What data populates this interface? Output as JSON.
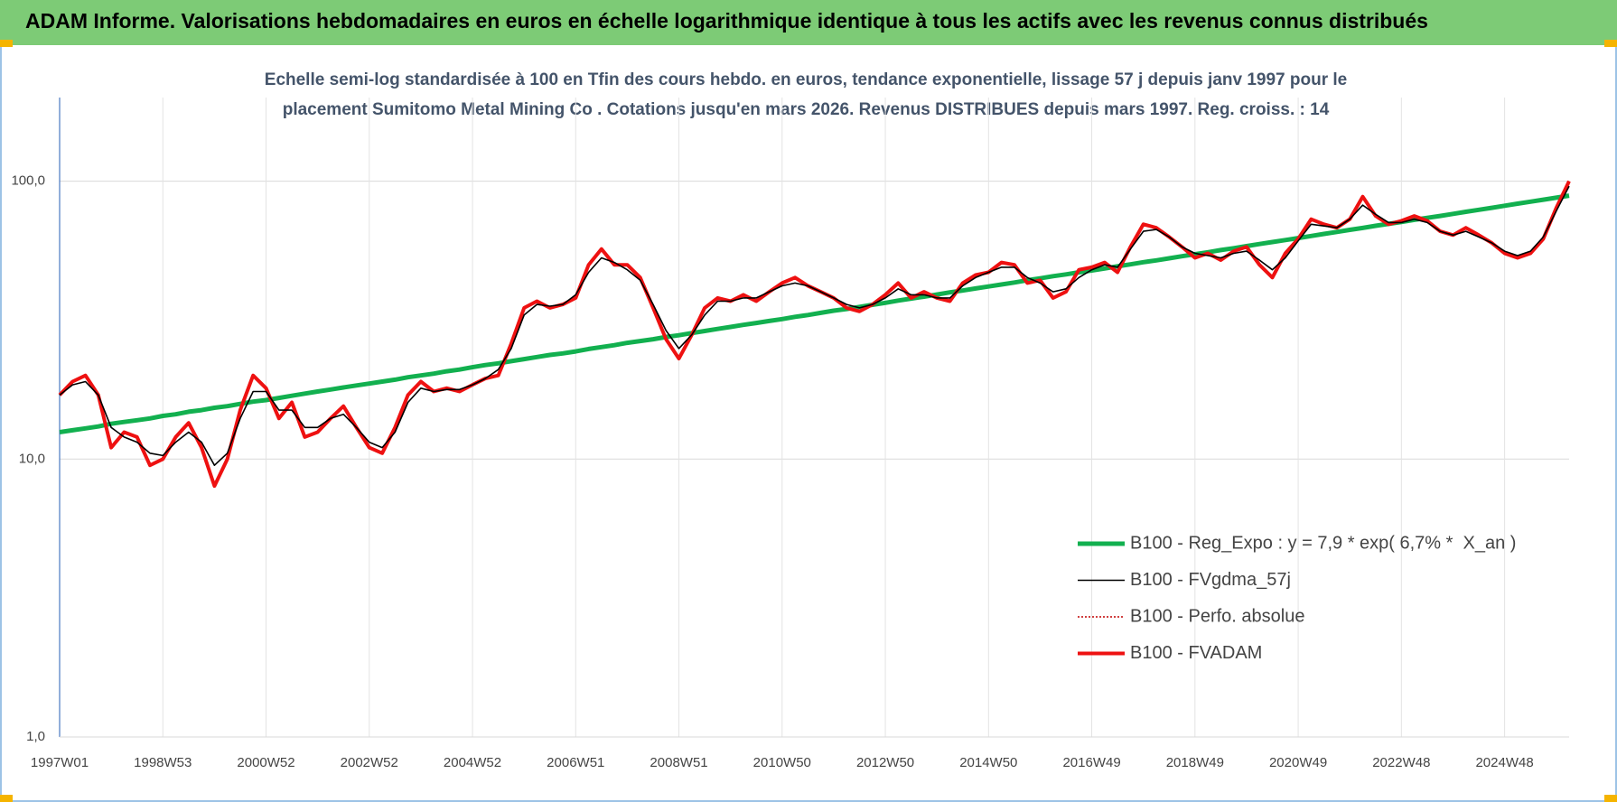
{
  "chart_data": {
    "type": "line",
    "title": "ADAM Informe. Valorisations hebdomadaires en euros en échelle logarithmique identique à tous les actifs avec les revenus connus distribués",
    "subtitle": [
      "Echelle semi-log standardisée à 100 en Tfin des cours hebdo. en euros, tendance exponentielle, lissage 57 j depuis janv 1997 pour le",
      "placement Sumitomo Metal Mining Co . Cotations jusqu'en mars 2026. Revenus DISTRIBUES depuis mars 1997. Reg. croiss. : 14"
    ],
    "categories": [
      "1997W01",
      null,
      null,
      null,
      null,
      null,
      null,
      null,
      "1998W53",
      null,
      null,
      null,
      null,
      null,
      null,
      null,
      "2000W52",
      null,
      null,
      null,
      null,
      null,
      null,
      null,
      "2002W52",
      null,
      null,
      null,
      null,
      null,
      null,
      null,
      "2004W52",
      null,
      null,
      null,
      null,
      null,
      null,
      null,
      "2006W51",
      null,
      null,
      null,
      null,
      null,
      null,
      null,
      "2008W51",
      null,
      null,
      null,
      null,
      null,
      null,
      null,
      "2010W50",
      null,
      null,
      null,
      null,
      null,
      null,
      null,
      "2012W50",
      null,
      null,
      null,
      null,
      null,
      null,
      null,
      "2014W50",
      null,
      null,
      null,
      null,
      null,
      null,
      null,
      "2016W49",
      null,
      null,
      null,
      null,
      null,
      null,
      null,
      "2018W49",
      null,
      null,
      null,
      null,
      null,
      null,
      null,
      "2020W49",
      null,
      null,
      null,
      null,
      null,
      null,
      null,
      "2022W48",
      null,
      null,
      null,
      null,
      null,
      null,
      null,
      "2024W48",
      null,
      null,
      null,
      null,
      null
    ],
    "log_scale": true,
    "grid": true,
    "legend": "lower right",
    "ylim": [
      1,
      200
    ],
    "yticks": [
      {
        "value": 1,
        "label": "1,0"
      },
      {
        "value": 10,
        "label": "10,0"
      },
      {
        "value": 100,
        "label": "100,0"
      }
    ],
    "series": [
      {
        "name": "B100 - Reg_Expo : y = 7,9 * exp( 6,7% *  X_an )",
        "color": "#12b04f",
        "line_style": "solid",
        "line_width": 5,
        "values": [
          12.5,
          12.7,
          12.9,
          13.1,
          13.4,
          13.6,
          13.8,
          14.0,
          14.3,
          14.5,
          14.8,
          15.0,
          15.3,
          15.5,
          15.8,
          16.1,
          16.3,
          16.6,
          16.9,
          17.2,
          17.5,
          17.8,
          18.1,
          18.4,
          18.7,
          19.0,
          19.3,
          19.7,
          20.0,
          20.3,
          20.7,
          21.0,
          21.4,
          21.8,
          22.1,
          22.5,
          22.9,
          23.3,
          23.7,
          24.0,
          24.4,
          24.9,
          25.3,
          25.7,
          26.2,
          26.6,
          27.0,
          27.5,
          27.9,
          28.4,
          28.9,
          29.4,
          29.9,
          30.4,
          30.9,
          31.4,
          31.9,
          32.5,
          33.0,
          33.6,
          34.2,
          34.7,
          35.3,
          35.9,
          36.5,
          37.2,
          37.8,
          38.4,
          39.1,
          39.8,
          40.4,
          41.1,
          41.8,
          42.5,
          43.2,
          44.0,
          44.7,
          45.5,
          46.2,
          47.0,
          47.7,
          48.5,
          49.4,
          50.2,
          51.1,
          51.9,
          52.8,
          53.7,
          54.6,
          55.5,
          56.5,
          57.4,
          58.4,
          59.4,
          60.4,
          61.4,
          62.4,
          63.5,
          64.6,
          65.7,
          66.8,
          67.9,
          69.1,
          70.2,
          71.3,
          72.6,
          73.8,
          75.0,
          76.3,
          77.6,
          78.9,
          80.2,
          81.6,
          83.0,
          84.4,
          85.8,
          87.2,
          88.7
        ]
      },
      {
        "name": "B100 - FVgdma_57j",
        "color": "#000000",
        "line_style": "solid",
        "line_width": 1.6,
        "values": [
          17,
          18.5,
          19,
          17,
          13,
          12,
          11.5,
          10.5,
          10.3,
          11.5,
          12.5,
          11.5,
          9.5,
          10.5,
          14,
          17.5,
          17.5,
          15,
          15,
          13,
          13,
          14,
          14.5,
          13,
          11.5,
          11,
          12.5,
          16,
          18,
          17.5,
          17.8,
          17.8,
          18.5,
          19.5,
          21,
          25,
          33,
          36,
          35.5,
          36,
          39,
          47,
          53,
          51,
          48,
          44,
          36,
          29,
          25,
          28,
          33,
          37,
          37,
          38,
          38,
          40,
          42,
          43,
          42,
          40,
          38,
          36,
          35,
          36,
          38,
          41,
          39,
          39,
          38,
          38,
          42,
          45,
          47,
          49,
          49,
          45,
          43,
          40,
          41,
          45,
          48,
          50,
          49,
          57,
          66,
          67,
          63,
          58,
          55,
          54,
          53,
          55,
          56,
          52,
          48,
          53,
          61,
          70,
          69,
          68,
          73,
          82,
          76,
          71,
          71,
          73,
          71,
          66,
          64,
          66,
          63,
          60,
          56,
          54,
          56,
          63,
          78,
          96
        ]
      },
      {
        "name": "B100 - Perfo. absolue",
        "color": "#c00000",
        "line_style": "dotted",
        "line_width": 1.5,
        "values": [
          17,
          19,
          20,
          17,
          11,
          12.5,
          12,
          9.5,
          10,
          12,
          13.5,
          11,
          8,
          10,
          15,
          20,
          18,
          14,
          16,
          12,
          12.5,
          14,
          15.5,
          13,
          11,
          10.5,
          13,
          17,
          19,
          17.5,
          18,
          17.5,
          18.5,
          19.5,
          20,
          26,
          35,
          37,
          35,
          36,
          38,
          50,
          57,
          50,
          50,
          45,
          35,
          27,
          23,
          28,
          35,
          38,
          37,
          39,
          37,
          40,
          43,
          45,
          42,
          40,
          38,
          35,
          34,
          36,
          39,
          43,
          38,
          40,
          38,
          37,
          43,
          46,
          47,
          51,
          50,
          43,
          44,
          38,
          40,
          48,
          49,
          51,
          47,
          58,
          70,
          68,
          63,
          58,
          53,
          55,
          52,
          56,
          58,
          50,
          45,
          55,
          62,
          73,
          70,
          68,
          73,
          88,
          75,
          70,
          72,
          75,
          72,
          66,
          64,
          68,
          64,
          60,
          55,
          53,
          55,
          62,
          80,
          100
        ]
      },
      {
        "name": "B100 - FVADAM",
        "color": "#ee1111",
        "line_style": "solid",
        "line_width": 4,
        "values": [
          17,
          19,
          20,
          17,
          11,
          12.5,
          12,
          9.5,
          10,
          12,
          13.5,
          11,
          8,
          10,
          15,
          20,
          18,
          14,
          16,
          12,
          12.5,
          14,
          15.5,
          13,
          11,
          10.5,
          13,
          17,
          19,
          17.5,
          18,
          17.5,
          18.5,
          19.5,
          20,
          26,
          35,
          37,
          35,
          36,
          38,
          50,
          57,
          50,
          50,
          45,
          35,
          27,
          23,
          28,
          35,
          38,
          37,
          39,
          37,
          40,
          43,
          45,
          42,
          40,
          38,
          35,
          34,
          36,
          39,
          43,
          38,
          40,
          38,
          37,
          43,
          46,
          47,
          51,
          50,
          43,
          44,
          38,
          40,
          48,
          49,
          51,
          47,
          58,
          70,
          68,
          63,
          58,
          53,
          55,
          52,
          56,
          58,
          50,
          45,
          55,
          62,
          73,
          70,
          68,
          73,
          88,
          75,
          70,
          72,
          75,
          72,
          66,
          64,
          68,
          64,
          60,
          55,
          53,
          55,
          62,
          80,
          100
        ]
      }
    ]
  }
}
